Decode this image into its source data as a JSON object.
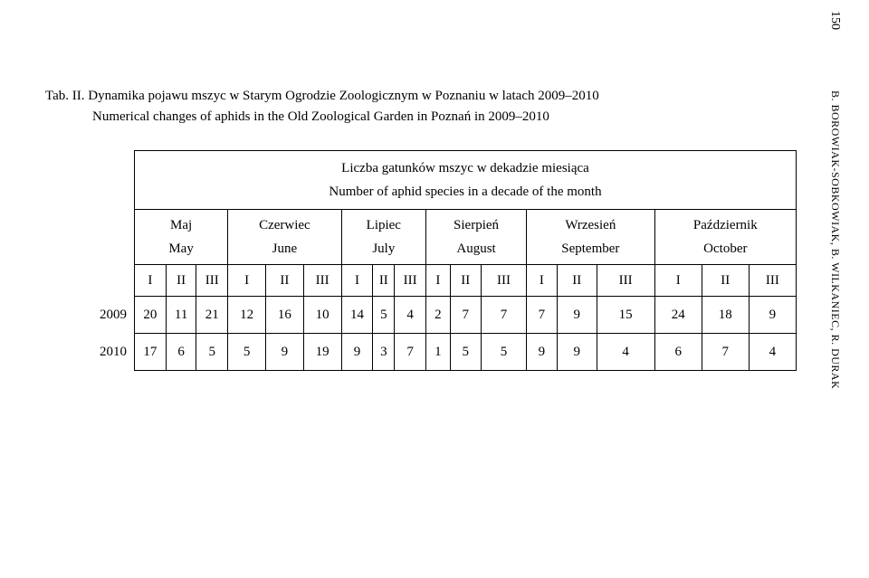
{
  "page_number": "150",
  "side_author": "B. BOROWIAK-SOBKOWIAK, B. WILKANIEC, R. DURAK",
  "caption": {
    "label": "Tab. II.",
    "line1": "Dynamika pojawu mszyc w Starym Ogrodzie Zoologicznym w Poznaniu w latach 2009–2010",
    "line2": "Numerical changes of aphids in the Old Zoological Garden in Poznań in 2009–2010"
  },
  "table": {
    "header_line1": "Liczba gatunków mszyc w dekadzie miesiąca",
    "header_line2": "Number of aphid species in a decade of the month",
    "months": [
      {
        "pl": "Maj",
        "en": "May"
      },
      {
        "pl": "Czerwiec",
        "en": "June"
      },
      {
        "pl": "Lipiec",
        "en": "July"
      },
      {
        "pl": "Sierpień",
        "en": "August"
      },
      {
        "pl": "Wrzesień",
        "en": "September"
      },
      {
        "pl": "Październik",
        "en": "October"
      }
    ],
    "decades": [
      "I",
      "II",
      "III"
    ],
    "rows": [
      {
        "year": "2009",
        "values": [
          "20",
          "11",
          "21",
          "12",
          "16",
          "10",
          "14",
          "5",
          "4",
          "2",
          "7",
          "7",
          "7",
          "9",
          "15",
          "24",
          "18",
          "9"
        ]
      },
      {
        "year": "2010",
        "values": [
          "17",
          "6",
          "5",
          "5",
          "9",
          "19",
          "9",
          "3",
          "7",
          "1",
          "5",
          "5",
          "9",
          "9",
          "4",
          "6",
          "7",
          "4"
        ]
      }
    ]
  }
}
